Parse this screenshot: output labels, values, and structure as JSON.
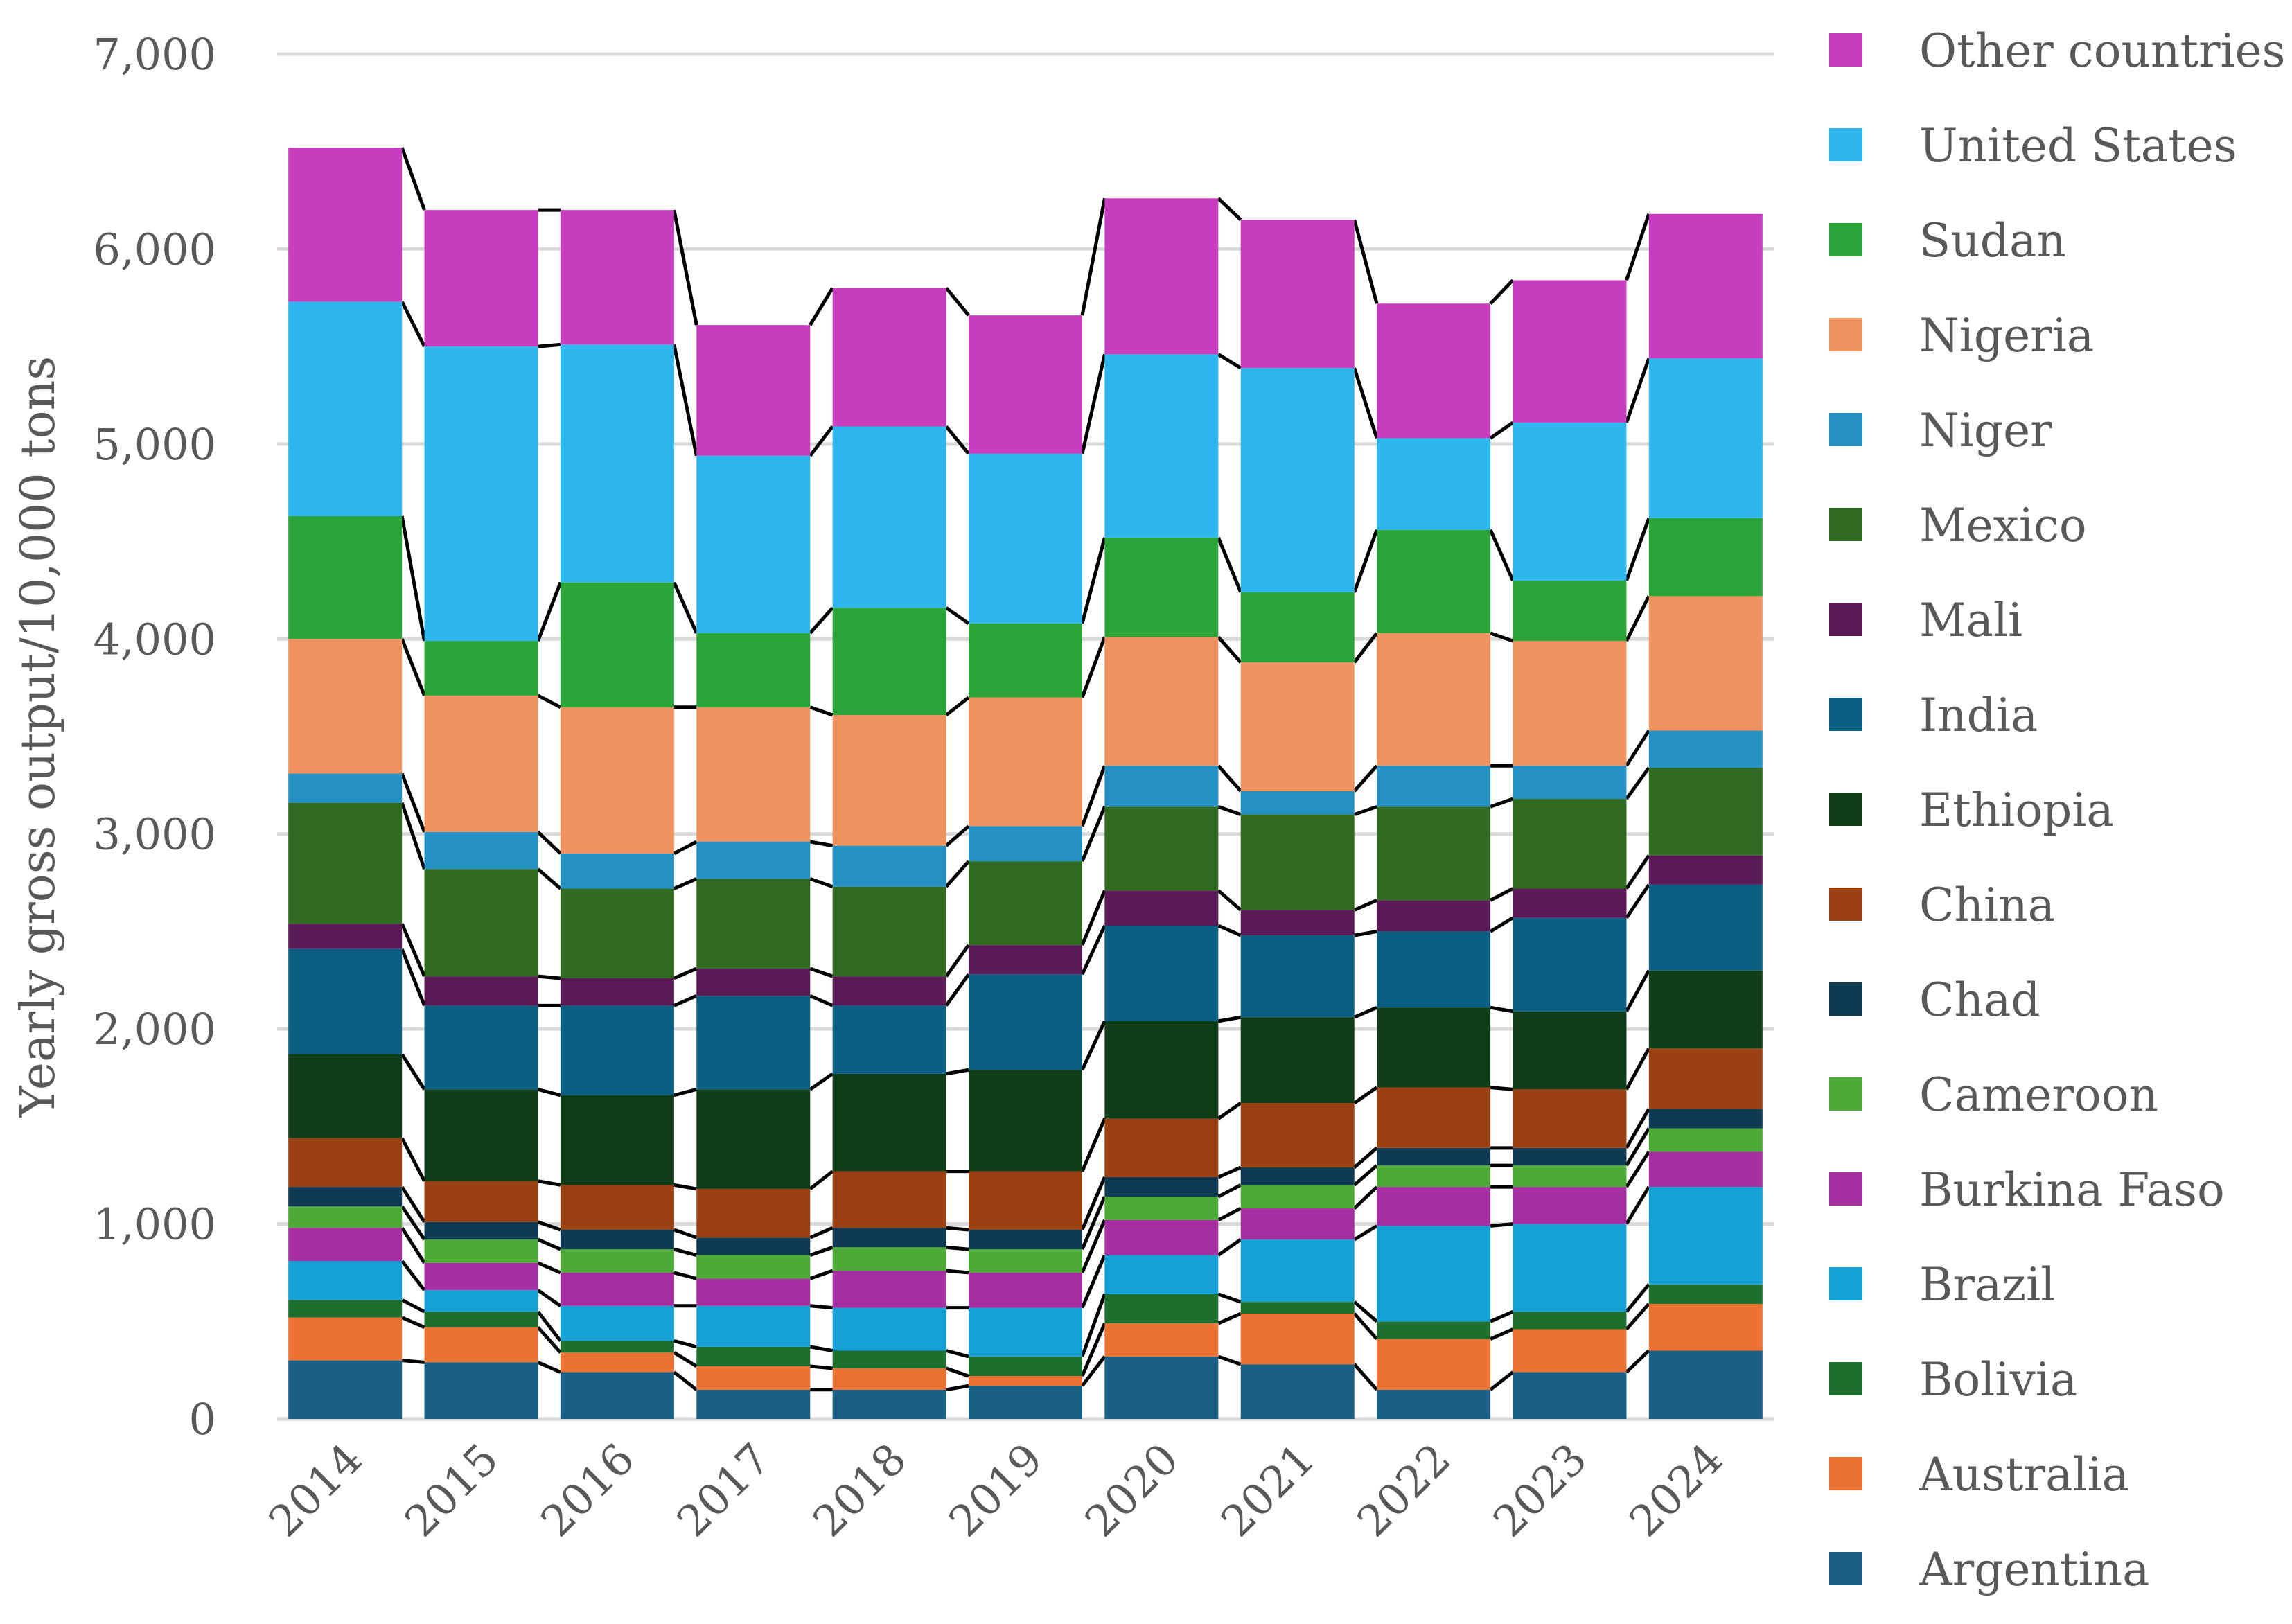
{
  "chart_data": {
    "type": "bar",
    "stacked": true,
    "title": "",
    "xlabel": "",
    "ylabel": "Yearly gross output/10,000 tons",
    "ylim": [
      0,
      7000
    ],
    "ytick_step": 1000,
    "grid": true,
    "legend_position": "right",
    "categories": [
      "2014",
      "2015",
      "2016",
      "2017",
      "2018",
      "2019",
      "2020",
      "2021",
      "2022",
      "2023",
      "2024"
    ],
    "series": [
      {
        "name": "Argentina",
        "color": "#1A6085",
        "values": [
          300,
          290,
          240,
          150,
          150,
          170,
          320,
          280,
          150,
          240,
          350
        ]
      },
      {
        "name": "Australia",
        "color": "#EB7233",
        "values": [
          220,
          180,
          100,
          120,
          110,
          50,
          170,
          260,
          260,
          220,
          240
        ]
      },
      {
        "name": "Bolivia",
        "color": "#1E6E2E",
        "values": [
          90,
          80,
          60,
          100,
          90,
          100,
          150,
          60,
          90,
          90,
          100
        ]
      },
      {
        "name": "Brazil",
        "color": "#15A0D6",
        "values": [
          200,
          110,
          180,
          210,
          220,
          250,
          200,
          320,
          490,
          450,
          500
        ]
      },
      {
        "name": "Burkina Faso",
        "color": "#A52FA0",
        "values": [
          170,
          140,
          170,
          140,
          190,
          180,
          180,
          160,
          200,
          190,
          180
        ]
      },
      {
        "name": "Cameroon",
        "color": "#4DAA36",
        "values": [
          110,
          120,
          120,
          120,
          120,
          120,
          120,
          120,
          110,
          110,
          120
        ]
      },
      {
        "name": "Chad",
        "color": "#0E3A52",
        "values": [
          100,
          90,
          100,
          90,
          100,
          100,
          100,
          90,
          90,
          90,
          100
        ]
      },
      {
        "name": "China",
        "color": "#9B4013",
        "values": [
          250,
          210,
          230,
          250,
          290,
          300,
          300,
          330,
          310,
          300,
          310
        ]
      },
      {
        "name": "Ethiopia",
        "color": "#103D18",
        "values": [
          430,
          470,
          460,
          510,
          500,
          520,
          500,
          440,
          410,
          400,
          400
        ]
      },
      {
        "name": "India",
        "color": "#0B5F82",
        "values": [
          540,
          430,
          460,
          480,
          350,
          490,
          490,
          420,
          390,
          480,
          440
        ]
      },
      {
        "name": "Mali",
        "color": "#5A1A55",
        "values": [
          130,
          150,
          140,
          140,
          150,
          150,
          180,
          130,
          160,
          150,
          150
        ]
      },
      {
        "name": "Mexico",
        "color": "#2F6A20",
        "values": [
          620,
          550,
          460,
          460,
          460,
          430,
          430,
          490,
          480,
          460,
          450
        ]
      },
      {
        "name": "Niger",
        "color": "#2590C2",
        "values": [
          150,
          190,
          180,
          190,
          210,
          180,
          210,
          120,
          210,
          170,
          190
        ]
      },
      {
        "name": "Nigeria",
        "color": "#EE9260",
        "values": [
          690,
          700,
          750,
          690,
          670,
          660,
          660,
          660,
          680,
          640,
          690
        ]
      },
      {
        "name": "Sudan",
        "color": "#2BA53A",
        "values": [
          630,
          280,
          640,
          380,
          550,
          380,
          510,
          360,
          530,
          310,
          400
        ]
      },
      {
        "name": "United States",
        "color": "#2EB7EF",
        "values": [
          1100,
          1510,
          1220,
          910,
          930,
          870,
          940,
          1150,
          470,
          810,
          820
        ]
      },
      {
        "name": "Other countries",
        "color": "#C63EBE",
        "values": [
          790,
          700,
          690,
          670,
          710,
          710,
          800,
          760,
          690,
          730,
          740
        ]
      }
    ]
  }
}
